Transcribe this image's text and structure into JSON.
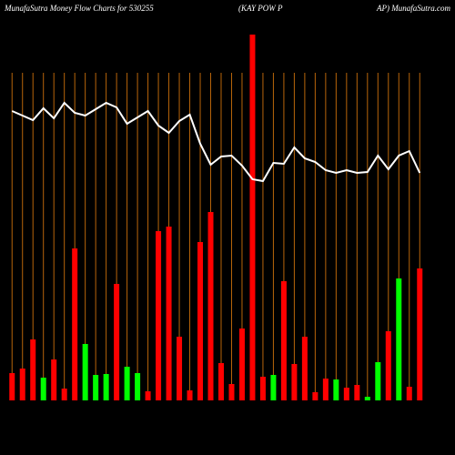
{
  "chart_data": {
    "type": "bar",
    "title": "MunafaSutra  Money Flow  Charts for 530255",
    "subtitle": "(KAY POW P",
    "source": "AP) MunafaSutra.com",
    "categories": [
      null,
      null,
      null,
      null,
      null,
      null,
      null,
      null,
      null,
      null,
      null,
      null,
      null,
      null,
      null,
      null,
      null,
      null,
      null,
      null,
      null,
      null,
      null,
      null,
      null,
      null,
      null,
      null,
      null,
      null,
      null,
      null,
      null,
      null,
      null,
      null,
      null,
      null,
      null,
      null
    ],
    "values": [
      30,
      35,
      67,
      25,
      45,
      13,
      167,
      62,
      28,
      29,
      128,
      37,
      30,
      10,
      186,
      191,
      70,
      11,
      174,
      207,
      41,
      18,
      79,
      402,
      26,
      28,
      131,
      40,
      70,
      9,
      24,
      23,
      14,
      17,
      4,
      42,
      76,
      134,
      15,
      145
    ],
    "colors": [
      "#ff0000",
      "#ff0000",
      "#ff0000",
      "#00ff00",
      "#ff0000",
      "#ff0000",
      "#ff0000",
      "#00ff00",
      "#00ff00",
      "#00ff00",
      "#ff0000",
      "#00ff00",
      "#00ff00",
      "#ff0000",
      "#ff0000",
      "#ff0000",
      "#ff0000",
      "#ff0000",
      "#ff0000",
      "#ff0000",
      "#ff0000",
      "#ff0000",
      "#ff0000",
      "#ff0000",
      "#ff0000",
      "#00ff00",
      "#ff0000",
      "#ff0000",
      "#ff0000",
      "#ff0000",
      "#ff0000",
      "#00ff00",
      "#ff0000",
      "#ff0000",
      "#00ff00",
      "#00ff00",
      "#ff0000",
      "#00ff00",
      "#ff0000",
      "#ff0000"
    ],
    "line": {
      "color": "#ffffff",
      "values": [
        318,
        313,
        308,
        321,
        310,
        327,
        316,
        313,
        320,
        327,
        322,
        304,
        311,
        318,
        302,
        294,
        307,
        314,
        282,
        259,
        268,
        269,
        258,
        243,
        241,
        261,
        260,
        278,
        266,
        262,
        253,
        250,
        253,
        250,
        251,
        269,
        254,
        269,
        274,
        250
      ]
    },
    "ylim": [
      0,
      402
    ],
    "grid_color": "#b8650a"
  }
}
